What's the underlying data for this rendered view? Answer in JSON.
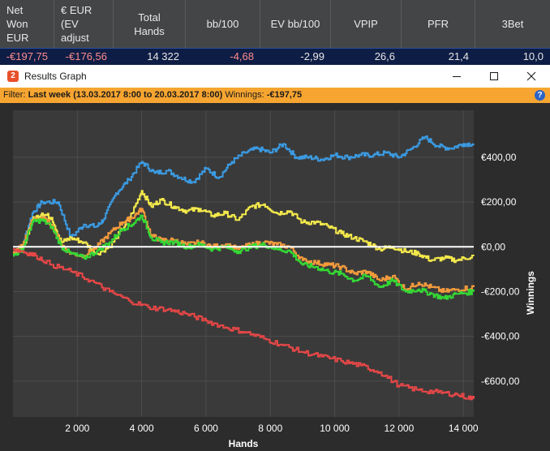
{
  "stats": {
    "headers": [
      "Net\nWon\nEUR",
      "€ EUR\n(EV\nadjust",
      "Total\nHands",
      "bb/100",
      "EV bb/100",
      "VPIP",
      "PFR",
      "3Bet"
    ],
    "values": [
      "-€197,75",
      "-€176,56",
      "14 322",
      "-4,68",
      "-2,99",
      "26,6",
      "21,4",
      "10,0"
    ]
  },
  "window": {
    "title": "Results Graph",
    "app_icon": "2",
    "controls": {
      "minimize": "minimize-icon",
      "maximize": "maximize-icon",
      "close": "close-icon"
    }
  },
  "filter": {
    "label": "Filter:",
    "value": "Last week (13.03.2017 8:00 to 20.03.2017 8:00)",
    "winnings_label": "Winnings:",
    "winnings_value": "-€197,75",
    "help": "?"
  },
  "chart_data": {
    "type": "line",
    "xlabel": "Hands",
    "ylabel": "Winnings",
    "xlim": [
      0,
      14322
    ],
    "ylim": [
      -760,
      610
    ],
    "x_ticks": [
      2000,
      4000,
      6000,
      8000,
      10000,
      12000,
      14000
    ],
    "x_tick_labels": [
      "2 000",
      "4 000",
      "6 000",
      "8 000",
      "10 000",
      "12 000",
      "14 000"
    ],
    "y_ticks": [
      400,
      200,
      0,
      -200,
      -400,
      -600
    ],
    "y_tick_labels": [
      "€400,00",
      "€200,00",
      "€0,00",
      "-€200,00",
      "-€400,00",
      "-€600,00"
    ],
    "grid": true,
    "zero_line_color": "#ffffff",
    "series": [
      {
        "color": "#3b9ae1",
        "x": [
          0,
          300,
          600,
          900,
          1400,
          1800,
          2200,
          2600,
          2800,
          3200,
          3600,
          4000,
          4400,
          4800,
          5200,
          5600,
          6000,
          6400,
          6800,
          7200,
          7600,
          8000,
          8400,
          8800,
          9200,
          9600,
          10000,
          10400,
          10800,
          11200,
          11600,
          12000,
          12400,
          12800,
          13200,
          13600,
          14000,
          14322
        ],
        "values": [
          -40,
          10,
          150,
          200,
          200,
          40,
          100,
          90,
          120,
          240,
          300,
          380,
          330,
          340,
          310,
          290,
          350,
          310,
          380,
          420,
          440,
          420,
          460,
          400,
          400,
          390,
          410,
          400,
          410,
          410,
          420,
          400,
          440,
          490,
          450,
          440,
          460,
          460
        ]
      },
      {
        "color": "#f4e94b",
        "x": [
          0,
          300,
          600,
          900,
          1200,
          1500,
          1800,
          2200,
          2600,
          3000,
          3400,
          3700,
          4000,
          4300,
          4600,
          5000,
          5400,
          5800,
          6200,
          6600,
          7000,
          7400,
          7800,
          8200,
          8600,
          9000,
          9400,
          9800,
          10200,
          10600,
          11000,
          11400,
          11800,
          12200,
          12600,
          13000,
          13400,
          13800,
          14322
        ],
        "values": [
          -30,
          -10,
          120,
          150,
          130,
          20,
          40,
          20,
          -30,
          0,
          80,
          150,
          250,
          180,
          210,
          180,
          160,
          170,
          140,
          150,
          120,
          180,
          190,
          150,
          160,
          110,
          110,
          90,
          60,
          40,
          20,
          -10,
          0,
          -20,
          -30,
          -60,
          -50,
          -60,
          -40
        ]
      },
      {
        "color": "#f39a3c",
        "x": [
          0,
          300,
          600,
          900,
          1200,
          1500,
          1800,
          2200,
          2600,
          3000,
          3400,
          3700,
          4000,
          4300,
          4600,
          5000,
          5400,
          5800,
          6200,
          6600,
          7000,
          7400,
          7800,
          8200,
          8600,
          9000,
          9400,
          9800,
          10200,
          10600,
          11000,
          11400,
          11800,
          12200,
          12600,
          13000,
          13400,
          13800,
          14322
        ],
        "values": [
          -30,
          10,
          120,
          130,
          100,
          10,
          -30,
          -40,
          0,
          60,
          110,
          130,
          170,
          50,
          30,
          30,
          10,
          20,
          0,
          10,
          -10,
          10,
          20,
          10,
          0,
          -60,
          -70,
          -80,
          -90,
          -120,
          -110,
          -150,
          -130,
          -190,
          -160,
          -180,
          -200,
          -190,
          -180
        ]
      },
      {
        "color": "#34d934",
        "x": [
          0,
          300,
          600,
          900,
          1200,
          1500,
          1800,
          2200,
          2600,
          3000,
          3400,
          3700,
          4000,
          4300,
          4600,
          5000,
          5400,
          5800,
          6200,
          6600,
          7000,
          7400,
          7800,
          8200,
          8600,
          9000,
          9400,
          9800,
          10200,
          10600,
          11000,
          11400,
          11800,
          12200,
          12600,
          13000,
          13400,
          13800,
          14322
        ],
        "values": [
          -40,
          -10,
          110,
          120,
          90,
          0,
          -30,
          -50,
          -20,
          20,
          80,
          100,
          140,
          40,
          20,
          20,
          0,
          10,
          -10,
          0,
          -20,
          0,
          10,
          -10,
          -20,
          -80,
          -90,
          -110,
          -120,
          -150,
          -130,
          -180,
          -150,
          -200,
          -190,
          -210,
          -230,
          -210,
          -200
        ]
      },
      {
        "color": "#e94747",
        "x": [
          0,
          300,
          700,
          1200,
          1800,
          2400,
          3000,
          3600,
          4200,
          4800,
          5400,
          6000,
          6600,
          7200,
          7800,
          8400,
          9000,
          9600,
          10200,
          10800,
          11400,
          12000,
          12600,
          13200,
          13800,
          14322
        ],
        "values": [
          -10,
          -20,
          -40,
          -80,
          -110,
          -150,
          -200,
          -240,
          -270,
          -280,
          -300,
          -330,
          -360,
          -380,
          -410,
          -440,
          -470,
          -490,
          -510,
          -530,
          -560,
          -620,
          -640,
          -650,
          -660,
          -680
        ]
      }
    ]
  }
}
